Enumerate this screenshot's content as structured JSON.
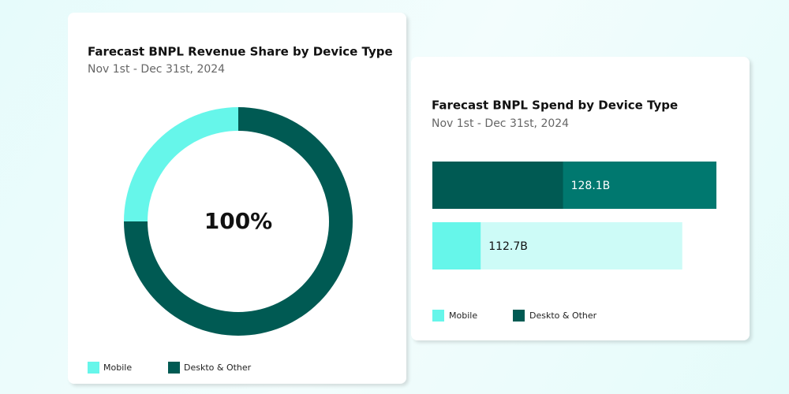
{
  "chart_data": [
    {
      "type": "donut",
      "title": "Farecast BNPL Revenue Share by Device Type",
      "subtitle": "Nov 1st - Dec 31st, 2024",
      "center_label": "100%",
      "categories": [
        "Mobile",
        "Deskto & Other"
      ],
      "values": [
        25,
        75
      ],
      "colors": [
        "#66f6ea",
        "#005a53"
      ]
    },
    {
      "type": "bar",
      "title": "Farecast BNPL Spend by Device Type",
      "subtitle": "Nov 1st - Dec 31st, 2024",
      "series": [
        {
          "name": "Mobile",
          "color": "#66f6ea",
          "track_color": "#cdfbf7",
          "values": [
            112.7
          ],
          "value_labels": [
            "112.7B"
          ],
          "share": [
            17
          ]
        },
        {
          "name": "Deskto & Other",
          "color": "#005a53",
          "track_color": "#00786f",
          "values": [
            128.1
          ],
          "value_labels": [
            "128.1B"
          ],
          "share": [
            46
          ]
        }
      ]
    }
  ]
}
